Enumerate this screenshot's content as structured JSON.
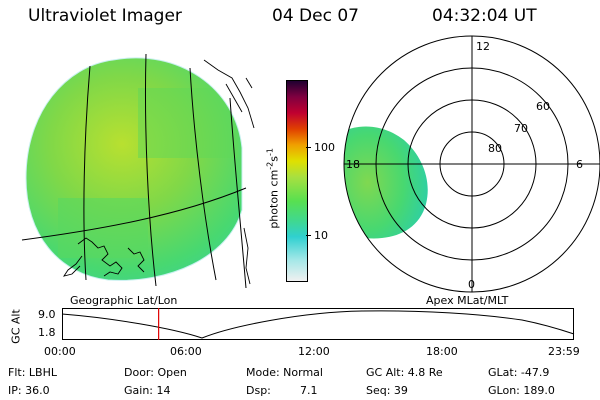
{
  "header": {
    "instrument": "Ultraviolet Imager",
    "date": "04 Dec 07",
    "time": "04:32:04 UT"
  },
  "colorbar": {
    "ticks": [
      "100",
      "10"
    ],
    "unit_main": "photon cm",
    "unit_exp1": "-2",
    "unit_s": "s",
    "unit_exp2": "-1",
    "gradient_colors": [
      "#f0f0f0",
      "#a0e8e8",
      "#30d0d0",
      "#40e060",
      "#a0e040",
      "#e0e000",
      "#f0a000",
      "#e04000",
      "#c00030",
      "#800040",
      "#200030"
    ]
  },
  "geo_panel": {
    "caption": "Geographic Lat/Lon"
  },
  "polar_panel": {
    "caption": "Apex MLat/MLT",
    "mlt_labels": {
      "top": "12",
      "right": "6",
      "left": "18",
      "bottom": "0"
    },
    "lat_labels": [
      "60",
      "70",
      "80"
    ]
  },
  "altitude_plot": {
    "ylabel": "GC Alt",
    "yticks": [
      "9.0",
      "1.8"
    ],
    "xticks": [
      "00:00",
      "06:00",
      "12:00",
      "18:00",
      "23:59"
    ],
    "marker_time_hours": 4.53
  },
  "info": {
    "flt": "Flt: LBHL",
    "ip": "IP: 36.0",
    "door": "Door: Open",
    "gain": "Gain: 14",
    "mode": "Mode: Normal",
    "dsp_label": "Dsp:",
    "dsp_value": "7.1",
    "gc_alt": "GC Alt: 4.8 Re",
    "seq": "Seq: 39",
    "glat": "GLat: -47.9",
    "glon": "GLon: 189.0"
  }
}
